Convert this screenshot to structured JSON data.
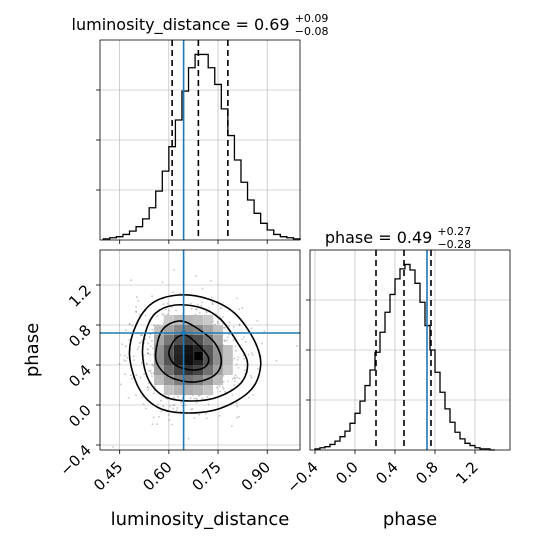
{
  "figure": {
    "colors": {
      "truth": "#1f77b4",
      "hist": "#000000",
      "grid": "#b0b0b0",
      "scatter": "#5a5a5a"
    }
  },
  "chart_data": [
    {
      "type": "bar",
      "panel": "luminosity_distance-marginal",
      "title": {
        "name": "luminosity_distance",
        "median": "0.69",
        "plus": "+0.09",
        "minus": "−0.08"
      },
      "x": [
        0.4,
        0.42,
        0.44,
        0.46,
        0.48,
        0.5,
        0.52,
        0.54,
        0.56,
        0.58,
        0.6,
        0.62,
        0.64,
        0.66,
        0.68,
        0.7,
        0.72,
        0.74,
        0.76,
        0.78,
        0.8,
        0.82,
        0.84,
        0.86,
        0.88,
        0.9,
        0.92,
        0.94,
        0.96,
        0.98
      ],
      "values": [
        1,
        2,
        3,
        5,
        8,
        12,
        19,
        29,
        44,
        62,
        84,
        108,
        134,
        155,
        167,
        167,
        155,
        140,
        118,
        94,
        72,
        52,
        36,
        24,
        15,
        9,
        5,
        3,
        2,
        1
      ],
      "quantiles": [
        0.61,
        0.69,
        0.78
      ],
      "truth": 0.645,
      "xlim": [
        0.39,
        1.0
      ],
      "ylim": [
        0,
        180
      ],
      "grid": true
    },
    {
      "type": "heatmap",
      "panel": "phase-vs-luminosity_distance",
      "xlabel": "luminosity_distance",
      "ylabel": "phase",
      "xticks": [
        "0.45",
        "0.60",
        "0.75",
        "0.90"
      ],
      "yticks": [
        "−0.4",
        "0.0",
        "0.4",
        "0.8",
        "1.2"
      ],
      "xlim": [
        0.39,
        1.0
      ],
      "ylim": [
        -0.45,
        1.55
      ],
      "truth": {
        "x": 0.645,
        "y": 0.72
      },
      "peak": {
        "x": 0.66,
        "y": 0.49
      },
      "contours": [
        [
          [
            0.6,
            0.52
          ],
          [
            0.62,
            0.66
          ],
          [
            0.65,
            0.7
          ],
          [
            0.68,
            0.63
          ],
          [
            0.72,
            0.48
          ],
          [
            0.71,
            0.38
          ],
          [
            0.67,
            0.35
          ],
          [
            0.62,
            0.4
          ],
          [
            0.6,
            0.52
          ]
        ],
        [
          [
            0.56,
            0.52
          ],
          [
            0.58,
            0.75
          ],
          [
            0.63,
            0.84
          ],
          [
            0.68,
            0.78
          ],
          [
            0.74,
            0.62
          ],
          [
            0.76,
            0.44
          ],
          [
            0.74,
            0.3
          ],
          [
            0.68,
            0.23
          ],
          [
            0.61,
            0.27
          ],
          [
            0.57,
            0.38
          ],
          [
            0.56,
            0.52
          ]
        ],
        [
          [
            0.52,
            0.5
          ],
          [
            0.53,
            0.74
          ],
          [
            0.56,
            0.92
          ],
          [
            0.62,
            1.0
          ],
          [
            0.7,
            0.97
          ],
          [
            0.76,
            0.85
          ],
          [
            0.81,
            0.62
          ],
          [
            0.84,
            0.42
          ],
          [
            0.82,
            0.22
          ],
          [
            0.75,
            0.08
          ],
          [
            0.67,
            0.04
          ],
          [
            0.59,
            0.08
          ],
          [
            0.54,
            0.24
          ],
          [
            0.52,
            0.5
          ]
        ],
        [
          [
            0.48,
            0.5
          ],
          [
            0.5,
            0.8
          ],
          [
            0.55,
            1.02
          ],
          [
            0.63,
            1.1
          ],
          [
            0.72,
            1.06
          ],
          [
            0.8,
            0.92
          ],
          [
            0.86,
            0.65
          ],
          [
            0.88,
            0.4
          ],
          [
            0.85,
            0.15
          ],
          [
            0.76,
            -0.03
          ],
          [
            0.66,
            -0.08
          ],
          [
            0.57,
            -0.03
          ],
          [
            0.51,
            0.16
          ],
          [
            0.48,
            0.5
          ]
        ]
      ],
      "grid": true
    },
    {
      "type": "bar",
      "panel": "phase-marginal",
      "title": {
        "name": "phase",
        "median": "0.49",
        "plus": "+0.27",
        "minus": "−0.28"
      },
      "xlabel": "phase",
      "xticks": [
        "−0.4",
        "0.0",
        "0.4",
        "0.8",
        "1.2"
      ],
      "x": [
        -0.4,
        -0.35,
        -0.3,
        -0.25,
        -0.2,
        -0.15,
        -0.1,
        -0.05,
        0.0,
        0.05,
        0.1,
        0.15,
        0.2,
        0.25,
        0.3,
        0.35,
        0.4,
        0.45,
        0.5,
        0.55,
        0.6,
        0.65,
        0.7,
        0.75,
        0.8,
        0.85,
        0.9,
        0.95,
        1.0,
        1.05,
        1.1,
        1.15,
        1.2,
        1.25,
        1.3,
        1.35
      ],
      "values": [
        1,
        2,
        3,
        5,
        8,
        12,
        17,
        24,
        33,
        44,
        58,
        72,
        88,
        106,
        124,
        140,
        154,
        163,
        167,
        162,
        150,
        133,
        112,
        90,
        70,
        52,
        37,
        25,
        16,
        10,
        6,
        4,
        2,
        1,
        1,
        0
      ],
      "quantiles": [
        0.21,
        0.49,
        0.76
      ],
      "truth": 0.72,
      "xlim": [
        -0.45,
        1.55
      ],
      "ylim": [
        0,
        180
      ],
      "grid": true
    }
  ]
}
